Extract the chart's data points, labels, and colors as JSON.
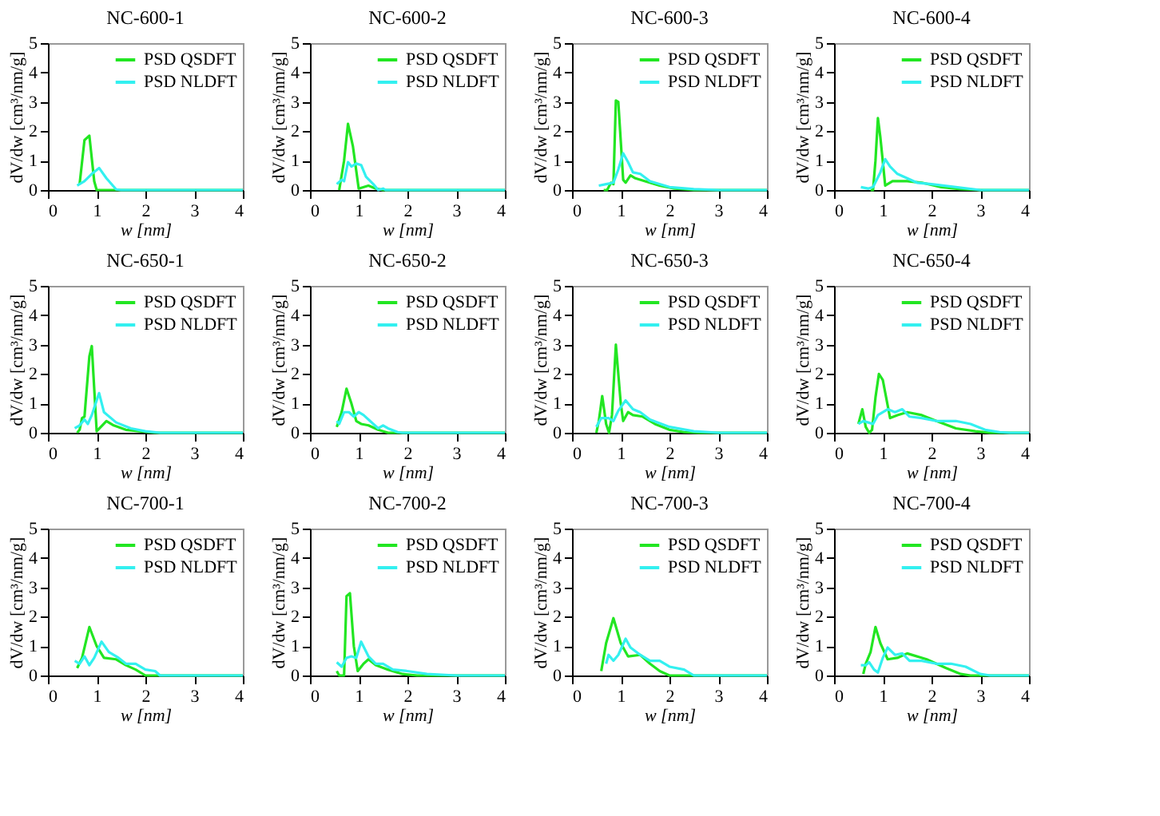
{
  "chart_data": [
    {
      "type": "line",
      "title": "NC-600-1",
      "xlabel": "w [nm]",
      "ylabel": "dV/dw [cm³/nm/g]",
      "xlim": [
        0,
        4
      ],
      "ylim": [
        0,
        5
      ],
      "xticks": [
        0,
        1,
        2,
        3,
        4
      ],
      "yticks": [
        0,
        1,
        2,
        3,
        4,
        5
      ],
      "grid": false,
      "legend": "top right",
      "series": [
        {
          "name": "PSD QSDFT",
          "color": "#22e622",
          "x": [
            0.65,
            0.75,
            0.85,
            0.95,
            1.0,
            4
          ],
          "values": [
            0.2,
            1.7,
            1.85,
            0.3,
            0,
            0
          ]
        },
        {
          "name": "PSD NLDFT",
          "color": "#33f0f0",
          "x": [
            0.6,
            0.75,
            0.9,
            1.05,
            1.2,
            1.4,
            1.5,
            4
          ],
          "values": [
            0.15,
            0.3,
            0.55,
            0.75,
            0.4,
            0.02,
            0,
            0
          ]
        }
      ]
    },
    {
      "type": "line",
      "title": "NC-600-2",
      "xlabel": "w [nm]",
      "ylabel": "dV/dw [cm³/nm/g]",
      "xlim": [
        0,
        4
      ],
      "ylim": [
        0,
        5
      ],
      "xticks": [
        0,
        1,
        2,
        3,
        4
      ],
      "yticks": [
        0,
        1,
        2,
        3,
        4,
        5
      ],
      "grid": false,
      "legend": "top right",
      "series": [
        {
          "name": "PSD QSDFT",
          "color": "#22e622",
          "x": [
            0.6,
            0.7,
            0.78,
            0.88,
            1.0,
            1.2,
            1.35,
            1.5,
            4
          ],
          "values": [
            0,
            1.0,
            2.25,
            1.5,
            0.05,
            0.15,
            0.05,
            0,
            0
          ]
        },
        {
          "name": "PSD NLDFT",
          "color": "#33f0f0",
          "x": [
            0.55,
            0.65,
            0.7,
            0.78,
            0.85,
            0.95,
            1.05,
            1.15,
            1.3,
            1.4,
            1.5,
            1.55,
            4
          ],
          "values": [
            0.2,
            0.35,
            0.3,
            0.95,
            0.8,
            0.9,
            0.85,
            0.45,
            0.2,
            0,
            0.05,
            0,
            0
          ]
        }
      ]
    },
    {
      "type": "line",
      "title": "NC-600-3",
      "xlabel": "w [nm]",
      "ylabel": "dV/dw [cm³/nm/g]",
      "xlim": [
        0,
        4
      ],
      "ylim": [
        0,
        5
      ],
      "xticks": [
        0,
        1,
        2,
        3,
        4
      ],
      "yticks": [
        0,
        1,
        2,
        3,
        4,
        5
      ],
      "grid": false,
      "legend": "top right",
      "series": [
        {
          "name": "PSD QSDFT",
          "color": "#22e622",
          "x": [
            0.65,
            0.72,
            0.8,
            0.85,
            0.9,
            0.95,
            1.05,
            1.1,
            1.2,
            1.3,
            1.5,
            1.8,
            2.1,
            2.5,
            4
          ],
          "values": [
            0,
            0,
            0.25,
            0.2,
            3.05,
            3.0,
            0.35,
            0.25,
            0.5,
            0.4,
            0.3,
            0.15,
            0.05,
            0,
            0
          ]
        },
        {
          "name": "PSD NLDFT",
          "color": "#33f0f0",
          "x": [
            0.55,
            0.7,
            0.85,
            0.95,
            1.05,
            1.15,
            1.25,
            1.4,
            1.6,
            2.0,
            2.5,
            3.0,
            4
          ],
          "values": [
            0.15,
            0.2,
            0.25,
            0.7,
            1.25,
            0.95,
            0.6,
            0.55,
            0.3,
            0.1,
            0.03,
            0,
            0
          ]
        }
      ]
    },
    {
      "type": "line",
      "title": "NC-600-4",
      "xlabel": "w [nm]",
      "ylabel": "dV/dw [cm³/nm/g]",
      "xlim": [
        0,
        4
      ],
      "ylim": [
        0,
        5
      ],
      "xticks": [
        0,
        1,
        2,
        3,
        4
      ],
      "yticks": [
        0,
        1,
        2,
        3,
        4,
        5
      ],
      "grid": false,
      "legend": "top right",
      "series": [
        {
          "name": "PSD QSDFT",
          "color": "#22e622",
          "x": [
            0.75,
            0.8,
            0.85,
            0.9,
            0.95,
            1.05,
            1.2,
            1.5,
            1.8,
            2.2,
            2.6,
            3.0,
            4
          ],
          "values": [
            0,
            0,
            1.0,
            2.45,
            1.8,
            0.15,
            0.3,
            0.3,
            0.25,
            0.1,
            0.03,
            0,
            0
          ]
        },
        {
          "name": "PSD NLDFT",
          "color": "#33f0f0",
          "x": [
            0.55,
            0.7,
            0.8,
            0.95,
            1.05,
            1.15,
            1.3,
            1.5,
            1.7,
            2.0,
            2.5,
            3.0,
            4
          ],
          "values": [
            0.1,
            0.05,
            0.1,
            0.6,
            1.05,
            0.8,
            0.55,
            0.4,
            0.25,
            0.2,
            0.1,
            0,
            0
          ]
        }
      ]
    },
    {
      "type": "line",
      "title": "NC-650-1",
      "xlabel": "w [nm]",
      "ylabel": "dV/dw [cm³/nm/g]",
      "xlim": [
        0,
        4
      ],
      "ylim": [
        0,
        5
      ],
      "xticks": [
        0,
        1,
        2,
        3,
        4
      ],
      "yticks": [
        0,
        1,
        2,
        3,
        4,
        5
      ],
      "grid": false,
      "legend": "top right",
      "series": [
        {
          "name": "PSD QSDFT",
          "color": "#22e622",
          "x": [
            0.6,
            0.65,
            0.7,
            0.75,
            0.85,
            0.9,
            1.0,
            1.2,
            1.35,
            1.6,
            2.0,
            2.2,
            4
          ],
          "values": [
            0,
            0.1,
            0.5,
            0.55,
            2.6,
            2.95,
            0.05,
            0.4,
            0.25,
            0.1,
            0.03,
            0,
            0
          ]
        },
        {
          "name": "PSD NLDFT",
          "color": "#33f0f0",
          "x": [
            0.55,
            0.65,
            0.75,
            0.82,
            0.9,
            1.05,
            1.15,
            1.4,
            1.7,
            2.0,
            2.3,
            4
          ],
          "values": [
            0.15,
            0.25,
            0.45,
            0.3,
            0.6,
            1.35,
            0.7,
            0.35,
            0.15,
            0.05,
            0,
            0
          ]
        }
      ]
    },
    {
      "type": "line",
      "title": "NC-650-2",
      "xlabel": "w [nm]",
      "ylabel": "dV/dw [cm³/nm/g]",
      "xlim": [
        0,
        4
      ],
      "ylim": [
        0,
        5
      ],
      "xticks": [
        0,
        1,
        2,
        3,
        4
      ],
      "yticks": [
        0,
        1,
        2,
        3,
        4,
        5
      ],
      "grid": false,
      "legend": "top right",
      "series": [
        {
          "name": "PSD QSDFT",
          "color": "#22e622",
          "x": [
            0.55,
            0.65,
            0.75,
            0.85,
            0.95,
            1.05,
            1.2,
            1.4,
            1.6,
            4
          ],
          "values": [
            0.2,
            0.7,
            1.5,
            1.0,
            0.4,
            0.3,
            0.25,
            0.1,
            0,
            0
          ]
        },
        {
          "name": "PSD NLDFT",
          "color": "#33f0f0",
          "x": [
            0.55,
            0.6,
            0.7,
            0.8,
            0.9,
            1.0,
            1.1,
            1.3,
            1.4,
            1.5,
            1.6,
            1.8,
            1.9,
            4
          ],
          "values": [
            0.4,
            0.3,
            0.7,
            0.7,
            0.55,
            0.7,
            0.6,
            0.3,
            0.15,
            0.25,
            0.15,
            0.02,
            0,
            0
          ]
        }
      ]
    },
    {
      "type": "line",
      "title": "NC-650-3",
      "xlabel": "w [nm]",
      "ylabel": "dV/dw [cm³/nm/g]",
      "xlim": [
        0,
        4
      ],
      "ylim": [
        0,
        5
      ],
      "xticks": [
        0,
        1,
        2,
        3,
        4
      ],
      "yticks": [
        0,
        1,
        2,
        3,
        4,
        5
      ],
      "grid": false,
      "legend": "top right",
      "series": [
        {
          "name": "PSD QSDFT",
          "color": "#22e622",
          "x": [
            0.5,
            0.55,
            0.62,
            0.7,
            0.76,
            0.82,
            0.9,
            1.0,
            1.05,
            1.15,
            1.25,
            1.45,
            1.7,
            2.0,
            2.3,
            2.6,
            4
          ],
          "values": [
            0,
            0.4,
            1.25,
            0.3,
            0,
            0.6,
            3.0,
            1.0,
            0.4,
            0.7,
            0.6,
            0.55,
            0.3,
            0.1,
            0.02,
            0,
            0
          ]
        },
        {
          "name": "PSD NLDFT",
          "color": "#33f0f0",
          "x": [
            0.5,
            0.6,
            0.75,
            0.85,
            0.95,
            1.1,
            1.25,
            1.4,
            1.6,
            2.0,
            2.5,
            3.0,
            4
          ],
          "values": [
            0.2,
            0.5,
            0.5,
            0.4,
            0.75,
            1.1,
            0.8,
            0.7,
            0.45,
            0.2,
            0.05,
            0,
            0
          ]
        }
      ]
    },
    {
      "type": "line",
      "title": "NC-650-4",
      "xlabel": "w [nm]",
      "ylabel": "dV/dw [cm³/nm/g]",
      "xlim": [
        0,
        4
      ],
      "ylim": [
        0,
        5
      ],
      "xticks": [
        0,
        1,
        2,
        3,
        4
      ],
      "yticks": [
        0,
        1,
        2,
        3,
        4,
        5
      ],
      "grid": false,
      "legend": "top right",
      "series": [
        {
          "name": "PSD QSDFT",
          "color": "#22e622",
          "x": [
            0.5,
            0.58,
            0.65,
            0.72,
            0.78,
            0.85,
            0.92,
            1.0,
            1.15,
            1.3,
            1.5,
            1.8,
            2.1,
            2.5,
            2.9,
            3.2,
            4
          ],
          "values": [
            0.3,
            0.8,
            0.2,
            0,
            0.1,
            1.2,
            2.0,
            1.8,
            0.5,
            0.6,
            0.7,
            0.6,
            0.4,
            0.15,
            0.05,
            0,
            0
          ]
        },
        {
          "name": "PSD NLDFT",
          "color": "#33f0f0",
          "x": [
            0.5,
            0.6,
            0.7,
            0.8,
            0.9,
            1.1,
            1.25,
            1.4,
            1.55,
            1.8,
            2.1,
            2.5,
            2.8,
            3.1,
            3.4,
            3.6,
            4
          ],
          "values": [
            0.3,
            0.4,
            0.35,
            0.3,
            0.6,
            0.8,
            0.7,
            0.8,
            0.55,
            0.5,
            0.4,
            0.4,
            0.3,
            0.1,
            0.02,
            0,
            0
          ]
        }
      ]
    },
    {
      "type": "line",
      "title": "NC-700-1",
      "xlabel": "w [nm]",
      "ylabel": "dV/dw [cm³/nm/g]",
      "xlim": [
        0,
        4
      ],
      "ylim": [
        0,
        5
      ],
      "xticks": [
        0,
        1,
        2,
        3,
        4
      ],
      "yticks": [
        0,
        1,
        2,
        3,
        4,
        5
      ],
      "grid": false,
      "legend": "top right",
      "series": [
        {
          "name": "PSD QSDFT",
          "color": "#22e622",
          "x": [
            0.6,
            0.7,
            0.85,
            1.0,
            1.15,
            1.4,
            1.6,
            1.8,
            2.0,
            4
          ],
          "values": [
            0.25,
            0.6,
            1.65,
            1.0,
            0.6,
            0.55,
            0.35,
            0.2,
            0,
            0
          ]
        },
        {
          "name": "PSD NLDFT",
          "color": "#33f0f0",
          "x": [
            0.55,
            0.65,
            0.75,
            0.85,
            0.95,
            1.1,
            1.25,
            1.45,
            1.6,
            1.8,
            2.0,
            2.2,
            2.3,
            4
          ],
          "values": [
            0.5,
            0.4,
            0.65,
            0.35,
            0.6,
            1.15,
            0.8,
            0.6,
            0.4,
            0.4,
            0.2,
            0.15,
            0,
            0
          ]
        }
      ]
    },
    {
      "type": "line",
      "title": "NC-700-2",
      "xlabel": "w [nm]",
      "ylabel": "dV/dw [cm³/nm/g]",
      "xlim": [
        0,
        4
      ],
      "ylim": [
        0,
        5
      ],
      "xticks": [
        0,
        1,
        2,
        3,
        4
      ],
      "yticks": [
        0,
        1,
        2,
        3,
        4,
        5
      ],
      "grid": false,
      "legend": "top right",
      "series": [
        {
          "name": "PSD QSDFT",
          "color": "#22e622",
          "x": [
            0.55,
            0.6,
            0.7,
            0.75,
            0.82,
            0.9,
            0.98,
            1.1,
            1.2,
            1.35,
            1.6,
            1.9,
            2.2,
            4
          ],
          "values": [
            0.15,
            0,
            0,
            2.7,
            2.8,
            1.0,
            0.15,
            0.4,
            0.55,
            0.35,
            0.2,
            0.05,
            0,
            0
          ]
        },
        {
          "name": "PSD NLDFT",
          "color": "#33f0f0",
          "x": [
            0.55,
            0.65,
            0.75,
            0.85,
            0.95,
            1.05,
            1.2,
            1.35,
            1.5,
            1.7,
            2.0,
            2.4,
            3.0,
            4
          ],
          "values": [
            0.45,
            0.3,
            0.6,
            0.65,
            0.6,
            1.15,
            0.65,
            0.4,
            0.4,
            0.2,
            0.15,
            0.05,
            0,
            0
          ]
        }
      ]
    },
    {
      "type": "line",
      "title": "NC-700-3",
      "xlabel": "w [nm]",
      "ylabel": "dV/dw [cm³/nm/g]",
      "xlim": [
        0,
        4
      ],
      "ylim": [
        0,
        5
      ],
      "xticks": [
        0,
        1,
        2,
        3,
        4
      ],
      "yticks": [
        0,
        1,
        2,
        3,
        4,
        5
      ],
      "grid": false,
      "legend": "top right",
      "series": [
        {
          "name": "PSD QSDFT",
          "color": "#22e622",
          "x": [
            0.6,
            0.7,
            0.85,
            1.0,
            1.15,
            1.4,
            1.6,
            1.8,
            2.0,
            4
          ],
          "values": [
            0.15,
            1.1,
            1.95,
            1.1,
            0.65,
            0.7,
            0.4,
            0.15,
            0,
            0
          ]
        },
        {
          "name": "PSD NLDFT",
          "color": "#33f0f0",
          "x": [
            0.7,
            0.75,
            0.85,
            0.95,
            1.1,
            1.2,
            1.4,
            1.6,
            1.8,
            2.0,
            2.3,
            2.5,
            4
          ],
          "values": [
            0.4,
            0.7,
            0.5,
            0.7,
            1.25,
            0.95,
            0.7,
            0.5,
            0.5,
            0.3,
            0.2,
            0,
            0
          ]
        }
      ]
    },
    {
      "type": "line",
      "title": "NC-700-4",
      "xlabel": "w [nm]",
      "ylabel": "dV/dw [cm³/nm/g]",
      "xlim": [
        0,
        4
      ],
      "ylim": [
        0,
        5
      ],
      "xticks": [
        0,
        1,
        2,
        3,
        4
      ],
      "yticks": [
        0,
        1,
        2,
        3,
        4,
        5
      ],
      "grid": false,
      "legend": "top right",
      "series": [
        {
          "name": "PSD QSDFT",
          "color": "#22e622",
          "x": [
            0.6,
            0.65,
            0.75,
            0.85,
            0.95,
            1.1,
            1.3,
            1.5,
            1.9,
            2.3,
            2.6,
            2.8,
            4
          ],
          "values": [
            0.05,
            0.4,
            0.8,
            1.65,
            1.1,
            0.55,
            0.6,
            0.75,
            0.55,
            0.25,
            0.05,
            0,
            0
          ]
        },
        {
          "name": "PSD NLDFT",
          "color": "#33f0f0",
          "x": [
            0.55,
            0.65,
            0.72,
            0.82,
            0.9,
            1.0,
            1.1,
            1.25,
            1.4,
            1.55,
            1.8,
            2.1,
            2.4,
            2.7,
            3.0,
            3.2,
            4
          ],
          "values": [
            0.35,
            0.35,
            0.45,
            0.2,
            0.1,
            0.6,
            0.95,
            0.7,
            0.75,
            0.5,
            0.5,
            0.4,
            0.4,
            0.3,
            0.05,
            0,
            0
          ]
        }
      ]
    }
  ]
}
